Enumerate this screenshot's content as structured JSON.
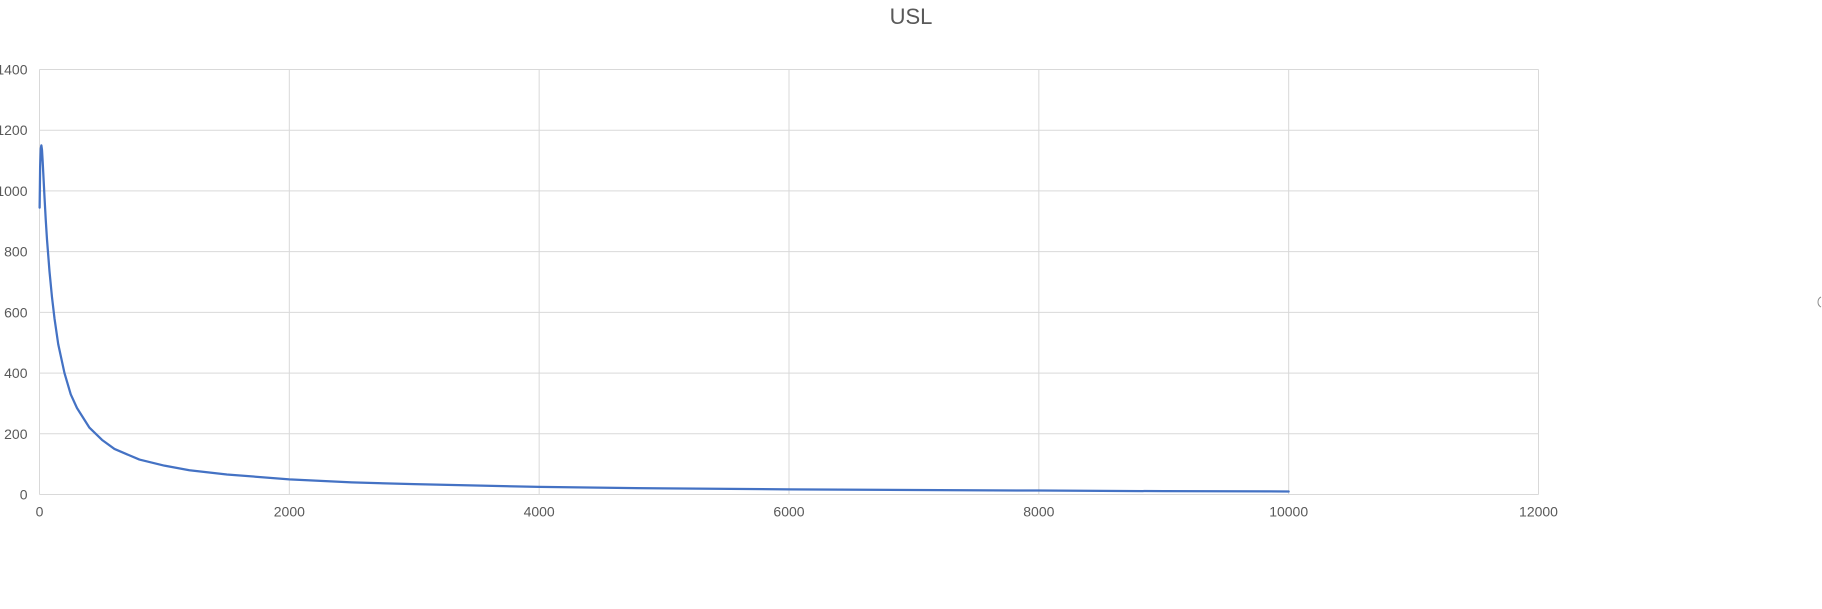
{
  "chart_data": {
    "type": "line",
    "title": "USL",
    "xlabel": "",
    "ylabel": "",
    "xlim": [
      0,
      12000
    ],
    "ylim": [
      0,
      1400
    ],
    "xticks": [
      0,
      2000,
      4000,
      6000,
      8000,
      10000,
      12000
    ],
    "yticks": [
      0,
      200,
      400,
      600,
      800,
      1000,
      1200,
      1400
    ],
    "grid": true,
    "legend": "none",
    "series": [
      {
        "color": "#4472C4",
        "x": [
          1,
          5,
          10,
          15,
          20,
          25,
          30,
          40,
          50,
          60,
          80,
          100,
          120,
          150,
          200,
          250,
          300,
          400,
          500,
          600,
          800,
          1000,
          1200,
          1500,
          2000,
          2500,
          3000,
          4000,
          5000,
          6000,
          7000,
          8000,
          9000,
          10000
        ],
        "y": [
          945,
          1080,
          1140,
          1150,
          1135,
          1100,
          1060,
          980,
          905,
          840,
          735,
          650,
          580,
          495,
          400,
          330,
          285,
          220,
          180,
          150,
          115,
          95,
          80,
          66,
          50,
          40,
          34,
          25,
          20,
          17,
          15,
          13,
          11,
          10
        ]
      }
    ]
  }
}
